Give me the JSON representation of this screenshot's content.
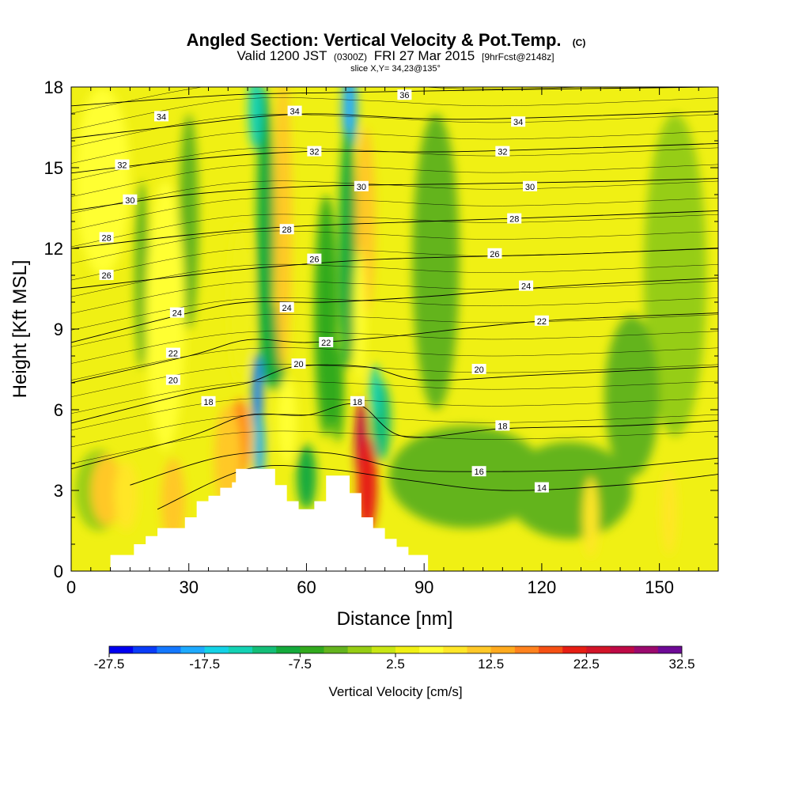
{
  "chart_data": {
    "type": "heatmap",
    "title": "Angled Section: Vertical Velocity & Pot.Temp.",
    "title_badge": "(C)",
    "subtitle_parts": [
      "Valid 1200 JST",
      "(0300Z)",
      "FRI 27 Mar 2015",
      "[9hrFcst@2148z]"
    ],
    "subtitle2": "slice X,Y= 34,23@135°",
    "xlabel": "Distance [nm]",
    "ylabel": "Height [Kft MSL]",
    "xlim": [
      0,
      165
    ],
    "ylim": [
      0,
      18
    ],
    "xticks": [
      "0",
      "30",
      "60",
      "90",
      "120",
      "150"
    ],
    "yticks": [
      "0",
      "3",
      "6",
      "9",
      "12",
      "15",
      "18"
    ],
    "colorbar": {
      "label": "Vertical Velocity [cm/s]",
      "tick_labels": [
        "-27.5",
        "-17.5",
        "-7.5",
        "2.5",
        "12.5",
        "22.5",
        "32.5"
      ],
      "min": -27.5,
      "max": 32.5,
      "step": 2.5,
      "colors": [
        "#0000f0",
        "#0a3cf8",
        "#1478ff",
        "#1eaaff",
        "#14d2e6",
        "#14d2b4",
        "#14be78",
        "#14aa3c",
        "#32aa1e",
        "#64b41e",
        "#96cd14",
        "#c8e614",
        "#f0f014",
        "#ffff32",
        "#ffe628",
        "#ffc828",
        "#ffaa1e",
        "#ff821e",
        "#f55014",
        "#e61e14",
        "#d21428",
        "#be0a46",
        "#9b0a6e",
        "#6e0a96"
      ]
    },
    "background_w": 2.5,
    "velocity_blobs": [
      {
        "x": 47.5,
        "y": 6.5,
        "rx": 1.3,
        "ry": 1.6,
        "w": -22
      },
      {
        "x": 48,
        "y": 4.6,
        "rx": 1.3,
        "ry": 1.3,
        "w": -20
      },
      {
        "x": 49.5,
        "y": 12.5,
        "rx": 2.2,
        "ry": 5.5,
        "w": -8
      },
      {
        "x": 47,
        "y": 17.2,
        "rx": 1.8,
        "ry": 1.5,
        "w": -13
      },
      {
        "x": 52,
        "y": 8.3,
        "rx": 3,
        "ry": 1.6,
        "w": -8
      },
      {
        "x": 60,
        "y": 3.5,
        "rx": 2.5,
        "ry": 1.2,
        "w": -8
      },
      {
        "x": 65,
        "y": 9.5,
        "rx": 3,
        "ry": 4.5,
        "w": -6
      },
      {
        "x": 68,
        "y": 6.6,
        "rx": 1.6,
        "ry": 1.8,
        "w": -7
      },
      {
        "x": 71,
        "y": 17.2,
        "rx": 1.8,
        "ry": 1.7,
        "w": -20
      },
      {
        "x": 70.5,
        "y": 12,
        "rx": 2.2,
        "ry": 4.5,
        "w": -9
      },
      {
        "x": 79,
        "y": 5.6,
        "rx": 2.5,
        "ry": 1.5,
        "w": -12
      },
      {
        "x": 77.5,
        "y": 6.7,
        "rx": 1.3,
        "ry": 1,
        "w": -15
      },
      {
        "x": 101,
        "y": 3.5,
        "rx": 20,
        "ry": 1.9,
        "w": -5
      },
      {
        "x": 127,
        "y": 3,
        "rx": 16,
        "ry": 1.8,
        "w": -5
      },
      {
        "x": 93,
        "y": 11.5,
        "rx": 6,
        "ry": 5.5,
        "w": -4
      },
      {
        "x": 154,
        "y": 11,
        "rx": 8,
        "ry": 6,
        "w": -2
      },
      {
        "x": 143,
        "y": 6.5,
        "rx": 7,
        "ry": 3,
        "w": -3
      },
      {
        "x": 18,
        "y": 11,
        "rx": 1.8,
        "ry": 3.5,
        "w": -3
      },
      {
        "x": 30,
        "y": 13,
        "rx": 2.5,
        "ry": 4,
        "w": -4
      },
      {
        "x": 7,
        "y": 3,
        "rx": 6,
        "ry": 1.5,
        "w": -2
      },
      {
        "x": 54,
        "y": 13,
        "rx": 2.2,
        "ry": 5.5,
        "w": 12
      },
      {
        "x": 55,
        "y": 5.6,
        "rx": 2.5,
        "ry": 1.6,
        "w": 7
      },
      {
        "x": 75,
        "y": 13,
        "rx": 2.5,
        "ry": 3.5,
        "w": 11
      },
      {
        "x": 73.5,
        "y": 9.5,
        "rx": 1.5,
        "ry": 2.5,
        "w": 7
      },
      {
        "x": 74,
        "y": 4.8,
        "rx": 1.6,
        "ry": 1.6,
        "w": 26
      },
      {
        "x": 75.5,
        "y": 3.2,
        "rx": 2.5,
        "ry": 1.8,
        "w": 20
      },
      {
        "x": 43,
        "y": 4.9,
        "rx": 2.5,
        "ry": 1.5,
        "w": 16
      },
      {
        "x": 40,
        "y": 4.2,
        "rx": 3.5,
        "ry": 2,
        "w": 10
      },
      {
        "x": 26,
        "y": 2.6,
        "rx": 3,
        "ry": 1.6,
        "w": 12
      },
      {
        "x": 9,
        "y": 3,
        "rx": 4,
        "ry": 1.3,
        "w": 10
      },
      {
        "x": 14,
        "y": 2.8,
        "rx": 3,
        "ry": 1.3,
        "w": 8
      },
      {
        "x": 132.5,
        "y": 2,
        "rx": 2,
        "ry": 1.5,
        "w": 9
      },
      {
        "x": 152.5,
        "y": 2.2,
        "rx": 2,
        "ry": 1.6,
        "w": 9
      },
      {
        "x": 8,
        "y": 14.5,
        "rx": 7,
        "ry": 3.5,
        "w": 5
      },
      {
        "x": 24,
        "y": 9.5,
        "rx": 5,
        "ry": 5,
        "w": 5
      },
      {
        "x": 43,
        "y": 10,
        "rx": 3,
        "ry": 3,
        "w": 4
      }
    ],
    "terrain": [
      [
        0,
        0
      ],
      [
        10,
        0
      ],
      [
        10,
        0.6
      ],
      [
        16,
        0.6
      ],
      [
        16,
        1
      ],
      [
        19,
        1
      ],
      [
        19,
        1.3
      ],
      [
        22,
        1.3
      ],
      [
        22,
        1.6
      ],
      [
        29,
        1.6
      ],
      [
        29,
        2
      ],
      [
        32,
        2
      ],
      [
        32,
        2.6
      ],
      [
        35,
        2.6
      ],
      [
        35,
        2.8
      ],
      [
        38,
        2.8
      ],
      [
        38,
        3.1
      ],
      [
        41,
        3.1
      ],
      [
        41,
        3.3
      ],
      [
        42,
        3.3
      ],
      [
        42,
        3.8
      ],
      [
        52,
        3.8
      ],
      [
        52,
        3.2
      ],
      [
        55,
        3.2
      ],
      [
        55,
        2.6
      ],
      [
        58,
        2.6
      ],
      [
        58,
        2.3
      ],
      [
        62,
        2.3
      ],
      [
        62,
        2.6
      ],
      [
        65,
        2.6
      ],
      [
        65,
        3.55
      ],
      [
        71,
        3.55
      ],
      [
        71,
        2.9
      ],
      [
        74,
        2.9
      ],
      [
        74,
        2.0
      ],
      [
        77,
        2.0
      ],
      [
        77,
        1.6
      ],
      [
        80,
        1.6
      ],
      [
        80,
        1.2
      ],
      [
        83,
        1.2
      ],
      [
        83,
        0.9
      ],
      [
        86,
        0.9
      ],
      [
        86,
        0.6
      ],
      [
        91,
        0.6
      ],
      [
        91,
        0
      ],
      [
        165,
        0
      ]
    ],
    "isotherms": [
      {
        "label": "14",
        "pts": [
          [
            22,
            2.3
          ],
          [
            45,
            3.8
          ],
          [
            65,
            3.8
          ],
          [
            85,
            3.4
          ],
          [
            110,
            3.0
          ],
          [
            140,
            3.2
          ],
          [
            165,
            3.6
          ]
        ],
        "lx": 120,
        "ly": 3.1
      },
      {
        "label": "16",
        "pts": [
          [
            15,
            3.2
          ],
          [
            40,
            4.3
          ],
          [
            65,
            4.4
          ],
          [
            85,
            3.8
          ],
          [
            105,
            3.7
          ],
          [
            135,
            3.8
          ],
          [
            165,
            4.2
          ]
        ],
        "lx": 104,
        "ly": 3.7
      },
      {
        "label": "18",
        "pts": [
          [
            0,
            3.8
          ],
          [
            30,
            5.0
          ],
          [
            45,
            5.8
          ],
          [
            60,
            5.8
          ],
          [
            73,
            6.2
          ],
          [
            85,
            5.0
          ],
          [
            110,
            5.3
          ],
          [
            140,
            5.4
          ],
          [
            165,
            5.6
          ]
        ],
        "lx": 110,
        "ly": 5.4
      },
      {
        "label": "20",
        "pts": [
          [
            0,
            5.5
          ],
          [
            30,
            6.6
          ],
          [
            45,
            7.0
          ],
          [
            57,
            7.6
          ],
          [
            75,
            7.6
          ],
          [
            90,
            7.1
          ],
          [
            120,
            7.3
          ],
          [
            165,
            7.6
          ]
        ],
        "lx": 104,
        "ly": 7.5
      },
      {
        "label": "22",
        "pts": [
          [
            0,
            7.0
          ],
          [
            30,
            8.0
          ],
          [
            45,
            8.6
          ],
          [
            60,
            8.5
          ],
          [
            80,
            8.7
          ],
          [
            120,
            9.3
          ],
          [
            165,
            9.6
          ]
        ],
        "lx": 120,
        "ly": 9.3
      },
      {
        "label": "24",
        "pts": [
          [
            0,
            8.5
          ],
          [
            30,
            9.6
          ],
          [
            45,
            10.0
          ],
          [
            65,
            10.0
          ],
          [
            90,
            10.2
          ],
          [
            125,
            10.6
          ],
          [
            165,
            10.9
          ]
        ],
        "lx": 116,
        "ly": 10.6
      },
      {
        "label": "26",
        "pts": [
          [
            0,
            10.5
          ],
          [
            30,
            11.0
          ],
          [
            50,
            11.3
          ],
          [
            80,
            11.6
          ],
          [
            130,
            11.8
          ],
          [
            165,
            12.0
          ]
        ],
        "lx": 108,
        "ly": 11.8
      },
      {
        "label": "28",
        "pts": [
          [
            0,
            12.0
          ],
          [
            30,
            12.5
          ],
          [
            55,
            12.8
          ],
          [
            90,
            13.0
          ],
          [
            130,
            13.2
          ],
          [
            165,
            13.4
          ]
        ],
        "lx": 113,
        "ly": 13.1
      },
      {
        "label": "30",
        "pts": [
          [
            0,
            13.4
          ],
          [
            30,
            14.0
          ],
          [
            60,
            14.3
          ],
          [
            100,
            14.4
          ],
          [
            140,
            14.5
          ],
          [
            165,
            14.6
          ]
        ],
        "lx": 117,
        "ly": 14.3
      },
      {
        "label": "32",
        "pts": [
          [
            0,
            14.8
          ],
          [
            30,
            15.3
          ],
          [
            60,
            15.6
          ],
          [
            100,
            15.6
          ],
          [
            165,
            15.9
          ]
        ],
        "lx": 110,
        "ly": 15.6
      },
      {
        "label": "34",
        "pts": [
          [
            0,
            16.1
          ],
          [
            30,
            16.6
          ],
          [
            60,
            17.0
          ],
          [
            100,
            16.8
          ],
          [
            165,
            17.1
          ]
        ],
        "lx": 114,
        "ly": 16.7
      },
      {
        "label": "36",
        "pts": [
          [
            0,
            17.3
          ],
          [
            40,
            17.7
          ],
          [
            70,
            17.8
          ],
          [
            110,
            17.9
          ],
          [
            165,
            18.0
          ]
        ],
        "lx": 85,
        "ly": 17.7
      }
    ],
    "extra_contour_labels": [
      {
        "label": "34",
        "x": 23,
        "y": 16.9
      },
      {
        "label": "34",
        "x": 57,
        "y": 17.1
      },
      {
        "label": "32",
        "x": 13,
        "y": 15.1
      },
      {
        "label": "32",
        "x": 62,
        "y": 15.6
      },
      {
        "label": "30",
        "x": 15,
        "y": 13.8
      },
      {
        "label": "30",
        "x": 74,
        "y": 14.3
      },
      {
        "label": "28",
        "x": 9,
        "y": 12.4
      },
      {
        "label": "28",
        "x": 55,
        "y": 12.7
      },
      {
        "label": "26",
        "x": 9,
        "y": 11.0
      },
      {
        "label": "26",
        "x": 62,
        "y": 11.6
      },
      {
        "label": "24",
        "x": 27,
        "y": 9.6
      },
      {
        "label": "24",
        "x": 55,
        "y": 9.8
      },
      {
        "label": "22",
        "x": 26,
        "y": 8.1
      },
      {
        "label": "22",
        "x": 65,
        "y": 8.5
      },
      {
        "label": "20",
        "x": 26,
        "y": 7.1
      },
      {
        "label": "20",
        "x": 58,
        "y": 7.7
      },
      {
        "label": "18",
        "x": 35,
        "y": 6.3
      },
      {
        "label": "18",
        "x": 73,
        "y": 6.3
      }
    ]
  }
}
